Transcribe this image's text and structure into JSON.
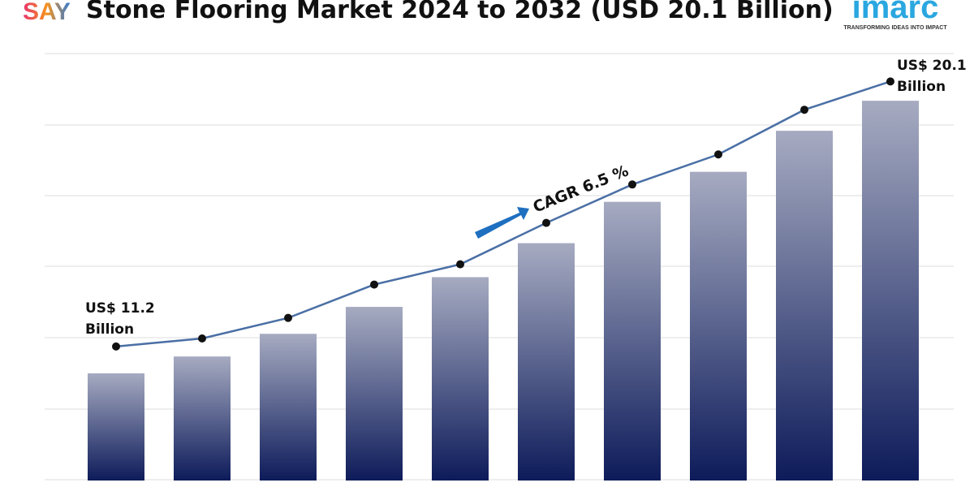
{
  "logos": {
    "left": "SAY",
    "right": "imarc",
    "tagline": "TRANSFORMING IDEAS INTO IMPACT"
  },
  "chart_data": {
    "type": "bar",
    "title": "Stone Flooring Market 2024 to 2032 (USD 20.1 Billion)",
    "annotation": "CAGR 6.5 %",
    "categories": [
      null,
      null,
      null,
      null,
      null,
      null,
      null,
      null,
      null,
      null
    ],
    "ylim": [
      7.7,
      21.8
    ],
    "y2lim": [
      6.7,
      21.2
    ],
    "series": [
      {
        "type": "bar",
        "color": "#0d1b5a",
        "values": [
          11.2,
          11.75,
          12.49,
          13.37,
          14.34,
          15.45,
          16.8,
          17.78,
          19.12,
          20.1
        ]
      },
      {
        "type": "line",
        "axis": "y2",
        "color": "#4a6fa5",
        "values": [
          11.2,
          11.47,
          12.16,
          13.28,
          13.96,
          15.35,
          16.64,
          17.65,
          19.15,
          20.1
        ],
        "value_labels": [
          "US$ 11.2 Billion",
          null,
          null,
          null,
          null,
          null,
          null,
          null,
          null,
          "US$ 20.1 Billion"
        ]
      }
    ]
  }
}
